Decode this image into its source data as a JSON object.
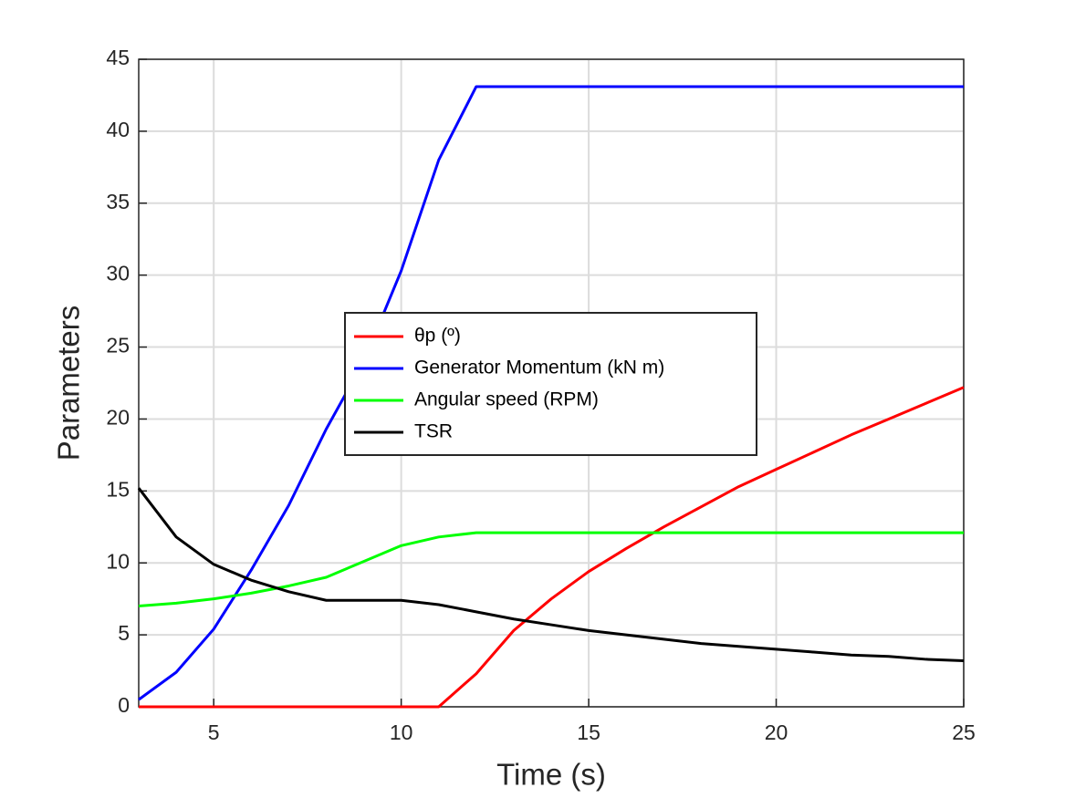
{
  "chart_data": {
    "type": "line",
    "xlabel": "Time (s)",
    "ylabel": "Parameters",
    "x": [
      3,
      4,
      5,
      6,
      7,
      8,
      9,
      10,
      11,
      12,
      13,
      14,
      15,
      16,
      17,
      18,
      19,
      20,
      21,
      22,
      23,
      24,
      25
    ],
    "series": [
      {
        "name": "θp (º)",
        "color": "#ff0000",
        "values": [
          0,
          0,
          0,
          0,
          0,
          0,
          0,
          0,
          0,
          2.3,
          5.3,
          7.5,
          9.4,
          11.0,
          12.5,
          13.9,
          15.3,
          16.5,
          17.7,
          18.9,
          20.0,
          21.1,
          22.2
        ]
      },
      {
        "name": "Generator Momentum (kN m)",
        "color": "#0000ff",
        "values": [
          0.5,
          2.4,
          5.4,
          9.5,
          14,
          19.3,
          24,
          30.3,
          38,
          43.1,
          43.1,
          43.1,
          43.1,
          43.1,
          43.1,
          43.1,
          43.1,
          43.1,
          43.1,
          43.1,
          43.1,
          43.1,
          43.1
        ]
      },
      {
        "name": "Angular speed (RPM)",
        "color": "#00ff00",
        "values": [
          7.0,
          7.2,
          7.5,
          7.9,
          8.4,
          9.0,
          10.1,
          11.2,
          11.8,
          12.1,
          12.1,
          12.1,
          12.1,
          12.1,
          12.1,
          12.1,
          12.1,
          12.1,
          12.1,
          12.1,
          12.1,
          12.1,
          12.1
        ]
      },
      {
        "name": "TSR",
        "color": "#000000",
        "values": [
          15.2,
          11.8,
          9.9,
          8.8,
          8.0,
          7.4,
          7.4,
          7.4,
          7.1,
          6.6,
          6.1,
          5.7,
          5.3,
          5.0,
          4.7,
          4.4,
          4.2,
          4.0,
          3.8,
          3.6,
          3.5,
          3.3,
          3.2
        ]
      }
    ],
    "xlim": [
      3,
      25
    ],
    "xticks": [
      5,
      10,
      15,
      20,
      25
    ],
    "ylim": [
      0,
      45
    ],
    "yticks": [
      0,
      5,
      10,
      15,
      20,
      25,
      30,
      35,
      40,
      45
    ],
    "grid": true
  }
}
